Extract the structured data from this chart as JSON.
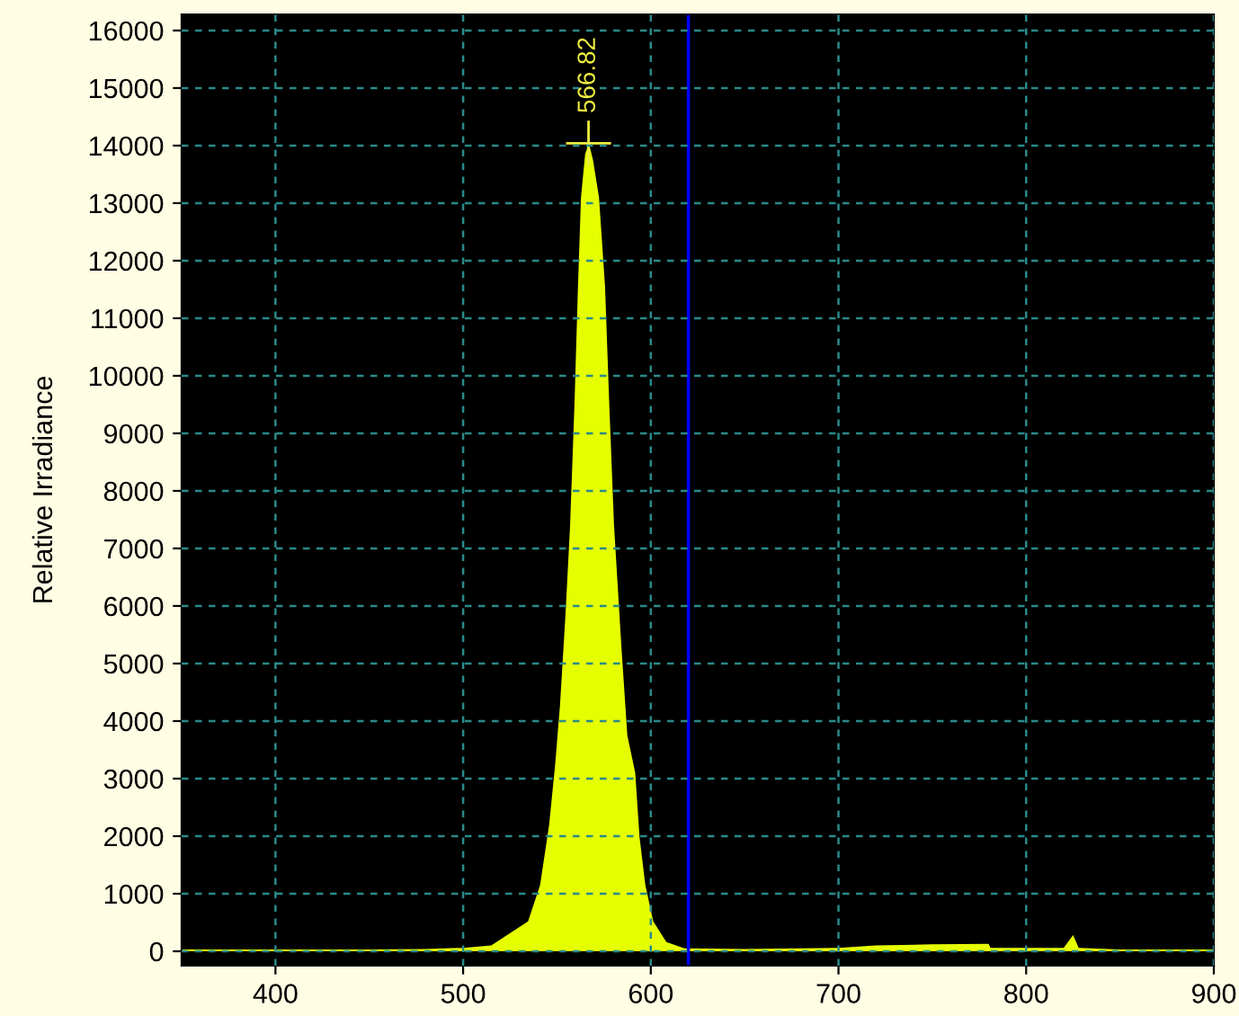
{
  "chart_data": {
    "type": "area",
    "ylabel": "Relative Irradiance",
    "x": [
      350,
      400,
      450,
      480,
      500,
      515,
      534.6,
      541,
      545.8,
      549,
      551.6,
      554.5,
      557,
      559.3,
      561.2,
      562.8,
      565,
      567,
      569.2,
      572.4,
      575.6,
      577.9,
      580.4,
      584.3,
      587.5,
      591.7,
      594,
      597.1,
      601.3,
      608.3,
      617.9,
      650,
      700,
      720,
      750,
      780,
      781,
      820,
      825,
      828,
      850,
      900
    ],
    "series": [
      {
        "color": "#e6ff00",
        "values": [
          30,
          30,
          30,
          40,
          60,
          100,
          520,
          1150,
          2190,
          3230,
          4270,
          5830,
          7400,
          9480,
          11560,
          13100,
          13850,
          14040,
          13750,
          13100,
          11560,
          9480,
          7400,
          5310,
          3750,
          3100,
          1980,
          1150,
          520,
          160,
          50,
          40,
          60,
          100,
          120,
          130,
          60,
          60,
          280,
          60,
          30,
          30
        ]
      }
    ],
    "xlim": [
      350,
      900
    ],
    "xticks": [
      400,
      500,
      600,
      700,
      800,
      900
    ],
    "ylim": [
      -250,
      16280
    ],
    "yticks": [
      0,
      1000,
      2000,
      3000,
      4000,
      5000,
      6000,
      7000,
      8000,
      9000,
      10000,
      11000,
      12000,
      13000,
      14000,
      15000,
      16000
    ],
    "grid": true,
    "ref_lines": [
      {
        "axis": "x",
        "value": 620,
        "color": "#0000ff"
      }
    ],
    "annotations": [
      {
        "text": "566.82",
        "x": 566.82,
        "y": 14040
      }
    ]
  }
}
